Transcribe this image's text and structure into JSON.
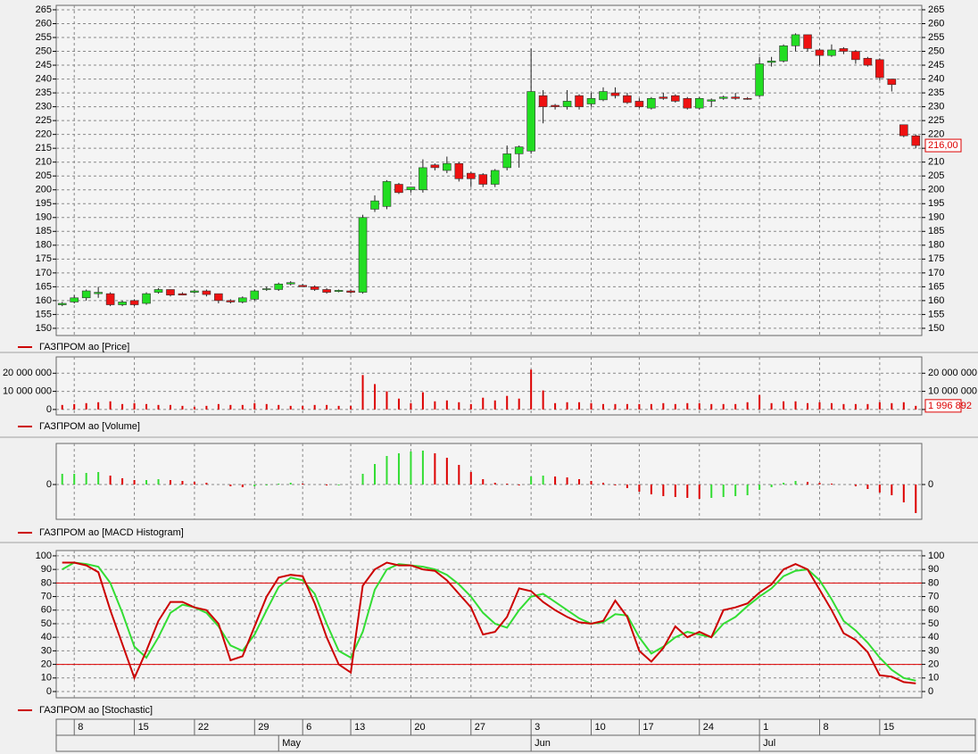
{
  "chart_data": [
    {
      "type": "candlestick",
      "legend": "ГАЗПРОМ ао [Price]",
      "up_color": "#22dd22",
      "down_color": "#ee1111",
      "grid": true,
      "ylim": [
        147.4,
        266.6
      ],
      "yticks": [
        150,
        155,
        160,
        165,
        170,
        175,
        180,
        185,
        190,
        195,
        200,
        205,
        210,
        215,
        220,
        225,
        230,
        235,
        240,
        245,
        250,
        255,
        260,
        265
      ],
      "last_label": "216,00",
      "open": [
        158.5,
        159.5,
        161,
        162.5,
        162.5,
        158.5,
        160,
        159,
        163,
        164,
        162.5,
        163,
        163.5,
        162.5,
        160,
        159.5,
        160.5,
        164,
        164,
        166,
        165.5,
        165,
        164,
        163.3,
        163.5,
        163,
        193,
        194,
        202,
        200,
        200,
        209,
        207,
        209.5,
        206,
        205.5,
        202,
        208,
        213,
        214,
        234,
        230.5,
        230,
        234,
        231,
        232.5,
        235,
        234,
        232,
        229.5,
        233.5,
        234,
        233,
        229.5,
        232,
        233,
        233.5,
        233,
        234,
        246,
        246.5,
        252,
        256,
        250.5,
        248.5,
        251,
        250,
        247.5,
        247,
        240,
        223.5,
        219.5
      ],
      "high": [
        159.5,
        162,
        164,
        165,
        163,
        160,
        160.5,
        163,
        164.5,
        164,
        163,
        164,
        164,
        162.5,
        160.5,
        161.5,
        164,
        165,
        166.5,
        167,
        166,
        165.5,
        164.5,
        164,
        164,
        191,
        198,
        203.5,
        202.5,
        201,
        211,
        209.5,
        212,
        210,
        206.5,
        206,
        207.5,
        216,
        216,
        251,
        236,
        231,
        236,
        234.5,
        235,
        237,
        237,
        235,
        233,
        233.5,
        235,
        234.5,
        233.5,
        233.5,
        233,
        234,
        235,
        233.5,
        248,
        248,
        252.5,
        256.5,
        256,
        251,
        252.5,
        251.5,
        250.5,
        248,
        247.5,
        240,
        223.5,
        220
      ],
      "low": [
        158,
        159,
        160,
        161,
        158,
        158,
        158,
        158.5,
        162.5,
        161.5,
        162,
        162.5,
        161.5,
        159,
        159,
        159,
        160,
        163.5,
        163.5,
        165.5,
        165,
        163.5,
        162.5,
        163,
        162.5,
        162.5,
        192,
        193,
        198.5,
        199,
        199,
        207,
        206,
        203,
        201,
        201,
        201,
        207,
        208,
        213,
        224,
        229,
        229,
        229,
        230,
        232,
        233,
        231,
        229.5,
        229,
        232.5,
        231.5,
        229,
        229,
        230,
        232.5,
        232.5,
        232.5,
        233.5,
        244.5,
        246,
        250,
        250,
        245,
        248,
        249,
        245.5,
        244.5,
        239.5,
        235.5,
        219,
        215
      ],
      "close": [
        159,
        161,
        163.5,
        163,
        158.5,
        159.5,
        158.5,
        162.5,
        164,
        162,
        162,
        163.5,
        162.2,
        160,
        159.5,
        161,
        163.5,
        164.3,
        166,
        166.5,
        165,
        164,
        163,
        163.7,
        163,
        190,
        196,
        203,
        199,
        201,
        208,
        208,
        209.5,
        204,
        204,
        202,
        207,
        213,
        215.5,
        235.5,
        230,
        230,
        232,
        230,
        233,
        235.5,
        234,
        231.5,
        230,
        233,
        233,
        232,
        229.5,
        233,
        232.5,
        233.5,
        233,
        232.7,
        245.5,
        246.5,
        252,
        256,
        251,
        248.5,
        250.5,
        250,
        247,
        245,
        240.5,
        238,
        219.5,
        216
      ]
    },
    {
      "type": "bar",
      "legend": "ГАЗПРОМ ао [Volume]",
      "color": "#dd0000",
      "grid": true,
      "ylim": [
        -3000000,
        29000000
      ],
      "yticks": [
        0,
        {
          "value": 10000000,
          "label": "10 000 000"
        },
        {
          "value": 20000000,
          "label": "20 000 000"
        }
      ],
      "last_label": "1 996 892",
      "values": [
        2500000,
        3000000,
        3500000,
        4000000,
        4500000,
        3000000,
        3500000,
        3000000,
        2500000,
        2500000,
        2000000,
        1500000,
        2000000,
        3000000,
        2500000,
        2500000,
        3500000,
        3000000,
        2500000,
        2000000,
        2000000,
        2500000,
        2500000,
        2000000,
        2000000,
        19000000,
        14000000,
        10000000,
        6000000,
        3500000,
        9500000,
        4500000,
        5000000,
        4000000,
        3000000,
        6500000,
        5000000,
        7500000,
        6000000,
        22000000,
        10500000,
        3500000,
        4000000,
        4000000,
        3500000,
        3000000,
        3000000,
        3000000,
        3000000,
        3000000,
        3500000,
        3000000,
        3500000,
        3500000,
        3000000,
        3000000,
        3000000,
        4000000,
        8000000,
        3500000,
        4500000,
        4500000,
        3500000,
        4000000,
        3500000,
        3000000,
        3000000,
        3000000,
        4000000,
        3500000,
        4000000,
        1996892
      ]
    },
    {
      "type": "bar",
      "legend": "ГАЗПРОМ ао [MACD Histogram]",
      "up_color": "#33dd33",
      "down_color": "#dd0000",
      "grid": true,
      "ylim": [
        -3.9,
        4.6
      ],
      "yticks": [
        0
      ],
      "values": [
        1.2,
        1.2,
        1.3,
        1.4,
        1.0,
        0.7,
        0.5,
        0.5,
        0.6,
        0.5,
        0.4,
        0.3,
        0.2,
        0,
        -0.2,
        -0.3,
        -0.2,
        -0.1,
        0.1,
        0.2,
        0.1,
        0,
        -0.1,
        -0.1,
        0,
        1.2,
        2.3,
        3.2,
        3.5,
        3.7,
        3.8,
        3.5,
        3.0,
        2.2,
        1.4,
        0.6,
        0.2,
        0.1,
        -0.1,
        0.9,
        1.0,
        0.9,
        0.8,
        0.6,
        0.4,
        0.2,
        -0.1,
        -0.4,
        -0.8,
        -1.1,
        -1.3,
        -1.4,
        -1.5,
        -1.6,
        -1.5,
        -1.4,
        -1.3,
        -1.2,
        -0.6,
        -0.3,
        0.2,
        0.4,
        0.3,
        0.2,
        0.1,
        0,
        -0.2,
        -0.5,
        -0.9,
        -1.2,
        -2.0,
        -3.2
      ]
    },
    {
      "type": "line",
      "legend": "ГАЗПРОМ ао [Stochastic]",
      "grid": true,
      "ylim": [
        -4.6,
        103.9
      ],
      "yticks": [
        0,
        10,
        20,
        30,
        40,
        50,
        60,
        70,
        80,
        90,
        100
      ],
      "levels": [
        20,
        80
      ],
      "level_color": "#dd0000",
      "series": [
        {
          "color": "#33dd33",
          "values": [
            90,
            95,
            94,
            92,
            80,
            58,
            33,
            25,
            40,
            58,
            64,
            62,
            58,
            48,
            34,
            30,
            42,
            60,
            77,
            84,
            82,
            72,
            50,
            30,
            25,
            44,
            75,
            90,
            94,
            93,
            92,
            90,
            86,
            79,
            70,
            58,
            50,
            47,
            60,
            70,
            72,
            66,
            60,
            54,
            50,
            51,
            57,
            56,
            40,
            28,
            33,
            40,
            44,
            42,
            40,
            50,
            55,
            63,
            70,
            76,
            85,
            89,
            90,
            82,
            68,
            52,
            45,
            36,
            25,
            16,
            10,
            8
          ]
        },
        {
          "color": "#cc0000",
          "values": [
            95,
            95,
            93,
            88,
            60,
            35,
            10,
            30,
            52,
            66,
            66,
            62,
            60,
            50,
            23,
            26,
            48,
            70,
            84,
            86,
            85,
            65,
            40,
            20,
            14,
            78,
            90,
            95,
            93,
            93,
            90,
            89,
            82,
            72,
            62,
            42,
            44,
            55,
            76,
            74,
            66,
            60,
            55,
            51,
            50,
            52,
            67,
            55,
            30,
            22,
            32,
            48,
            40,
            44,
            40,
            60,
            62,
            65,
            73,
            79,
            90,
            94,
            90,
            75,
            60,
            43,
            38,
            29,
            12,
            11,
            7,
            6
          ]
        }
      ]
    }
  ],
  "date_axis": {
    "days": [
      null,
      "8",
      null,
      null,
      null,
      null,
      "15",
      null,
      null,
      null,
      null,
      "22",
      null,
      null,
      null,
      null,
      "29",
      null,
      null,
      null,
      "6",
      null,
      null,
      null,
      "13",
      null,
      null,
      null,
      null,
      "20",
      null,
      null,
      null,
      null,
      "27",
      null,
      null,
      null,
      null,
      "3",
      null,
      null,
      null,
      null,
      "10",
      null,
      null,
      null,
      "17",
      null,
      null,
      null,
      null,
      "24",
      null,
      null,
      null,
      null,
      "1",
      null,
      null,
      null,
      null,
      "8",
      null,
      null,
      null,
      null,
      "15",
      null,
      null,
      null
    ],
    "months": [
      null,
      null,
      null,
      null,
      null,
      null,
      null,
      null,
      null,
      null,
      null,
      null,
      null,
      null,
      null,
      null,
      null,
      null,
      "May",
      null,
      null,
      null,
      null,
      null,
      null,
      null,
      null,
      null,
      null,
      null,
      null,
      null,
      null,
      null,
      null,
      null,
      null,
      null,
      null,
      "Jun",
      null,
      null,
      null,
      null,
      null,
      null,
      null,
      null,
      null,
      null,
      null,
      null,
      null,
      null,
      null,
      null,
      null,
      null,
      "Jul",
      null,
      null,
      null,
      null,
      null,
      null,
      null,
      null,
      null,
      null,
      null,
      null,
      null
    ]
  }
}
